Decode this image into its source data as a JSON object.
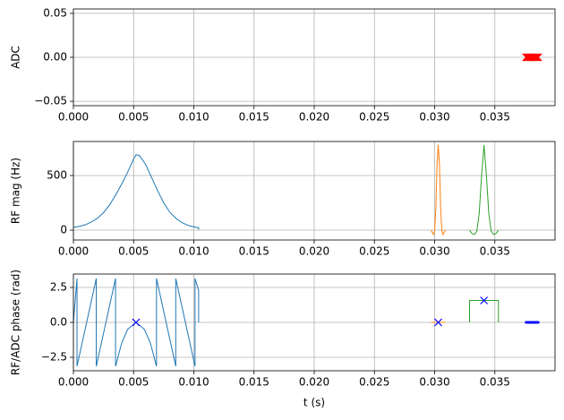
{
  "chart_data": [
    {
      "type": "scatter",
      "ylabel": "ADC",
      "xlim": [
        0,
        0.04
      ],
      "ylim": [
        -0.055,
        0.055
      ],
      "grid": true,
      "xticks": [
        {
          "value": 0,
          "label": "0.000"
        },
        {
          "value": 0.005,
          "label": "0.005"
        },
        {
          "value": 0.01,
          "label": "0.010"
        },
        {
          "value": 0.015,
          "label": "0.015"
        },
        {
          "value": 0.02,
          "label": "0.020"
        },
        {
          "value": 0.025,
          "label": "0.025"
        },
        {
          "value": 0.03,
          "label": "0.030"
        },
        {
          "value": 0.035,
          "label": "0.035"
        }
      ],
      "yticks": [
        {
          "value": -0.05,
          "label": "−0.05"
        },
        {
          "value": 0,
          "label": "0.00"
        },
        {
          "value": 0.05,
          "label": "0.05"
        }
      ],
      "series": [
        {
          "color": "#ff0000",
          "mode": "markers",
          "marker": "x",
          "x": [
            0.0376,
            0.0377,
            0.0378,
            0.0379,
            0.038,
            0.0381,
            0.0382,
            0.0383,
            0.0384,
            0.0385,
            0.0386
          ],
          "values": [
            0,
            0,
            0,
            0,
            0,
            0,
            0,
            0,
            0,
            0,
            0
          ]
        }
      ]
    },
    {
      "type": "line",
      "ylabel": "RF mag (Hz)",
      "xlim": [
        0,
        0.04
      ],
      "ylim": [
        -90,
        811
      ],
      "grid": true,
      "xticks": [
        {
          "value": 0,
          "label": "0.000"
        },
        {
          "value": 0.005,
          "label": "0.005"
        },
        {
          "value": 0.01,
          "label": "0.010"
        },
        {
          "value": 0.015,
          "label": "0.015"
        },
        {
          "value": 0.02,
          "label": "0.020"
        },
        {
          "value": 0.025,
          "label": "0.025"
        },
        {
          "value": 0.03,
          "label": "0.030"
        },
        {
          "value": 0.035,
          "label": "0.035"
        }
      ],
      "yticks": [
        0,
        500
      ],
      "series": [
        {
          "color": "#1f77b4",
          "mode": "line",
          "x": [
            0,
            0.0005,
            0.001,
            0.0015,
            0.002,
            0.0025,
            0.003,
            0.0035,
            0.004,
            0.0045,
            0.005,
            0.0052,
            0.0055,
            0.006,
            0.0065,
            0.007,
            0.0075,
            0.008,
            0.0085,
            0.009,
            0.0095,
            0.01,
            0.0104,
            0.0104
          ],
          "values": [
            25,
            35,
            50,
            75,
            110,
            160,
            230,
            320,
            420,
            530,
            650,
            690,
            680,
            600,
            480,
            360,
            250,
            165,
            110,
            70,
            45,
            30,
            22,
            5
          ]
        },
        {
          "color": "#ff7f0e",
          "mode": "line",
          "x": [
            0.0297,
            0.0299,
            0.03,
            0.0301,
            0.0302,
            0.0303,
            0.0304,
            0.0305,
            0.0306,
            0.0307,
            0.0309
          ],
          "values": [
            0,
            -40,
            -10,
            200,
            600,
            780,
            600,
            200,
            -10,
            -40,
            0
          ]
        },
        {
          "color": "#2ca02c",
          "mode": "line",
          "x": [
            0.0329,
            0.0331,
            0.0333,
            0.0335,
            0.0337,
            0.0339,
            0.0341,
            0.0343,
            0.0345,
            0.0347,
            0.0349,
            0.0351,
            0.0353
          ],
          "values": [
            0,
            -30,
            -40,
            -10,
            150,
            500,
            780,
            500,
            150,
            -10,
            -40,
            -30,
            0
          ]
        }
      ]
    },
    {
      "type": "line",
      "ylabel": "RF/ADC phase (rad)",
      "xlabel": "t (s)",
      "xlim": [
        0,
        0.04
      ],
      "ylim": [
        -3.46,
        3.46
      ],
      "grid": true,
      "xticks": [
        {
          "value": 0,
          "label": "0.000"
        },
        {
          "value": 0.005,
          "label": "0.005"
        },
        {
          "value": 0.01,
          "label": "0.010"
        },
        {
          "value": 0.015,
          "label": "0.015"
        },
        {
          "value": 0.02,
          "label": "0.020"
        },
        {
          "value": 0.025,
          "label": "0.025"
        },
        {
          "value": 0.03,
          "label": "0.030"
        },
        {
          "value": 0.035,
          "label": "0.035"
        }
      ],
      "yticks": [
        {
          "value": -2.5,
          "label": "−2.5"
        },
        {
          "value": 0,
          "label": "0.0"
        },
        {
          "value": 2.5,
          "label": "2.5"
        }
      ],
      "series": [
        {
          "color": "#1f77b4",
          "mode": "line",
          "x": [
            0,
            0.0003,
            0.0003,
            0.0019,
            0.0019,
            0.0035,
            0.0035,
            0.004,
            0.0045,
            0.0052,
            0.0059,
            0.0064,
            0.0069,
            0.0069,
            0.0085,
            0.0085,
            0.0101,
            0.0101,
            0.0104,
            0.0104
          ],
          "values": [
            0,
            3.14,
            -3.14,
            3.14,
            -3.14,
            3.14,
            -3.14,
            -1.5,
            -0.5,
            0,
            -0.5,
            -1.5,
            -3.14,
            3.14,
            -3.14,
            3.14,
            -3.14,
            3.14,
            2.3,
            0
          ]
        },
        {
          "color": "#ff7f0e",
          "mode": "line",
          "x": [
            0.0297,
            0.0309
          ],
          "values": [
            0,
            0
          ]
        },
        {
          "color": "#2ca02c",
          "mode": "line",
          "x": [
            0.0329,
            0.0329,
            0.0353,
            0.0353
          ],
          "values": [
            0,
            1.57,
            1.57,
            0
          ]
        },
        {
          "color": "#0000ff",
          "mode": "markers",
          "marker": "x",
          "x": [
            0.0052,
            0.0303,
            0.0341
          ],
          "values": [
            0,
            0,
            1.57
          ]
        },
        {
          "color": "#0000ff",
          "mode": "markers",
          "marker": "dot",
          "x": [
            0.0376,
            0.0377,
            0.0378,
            0.0379,
            0.038,
            0.0381,
            0.0382,
            0.0383,
            0.0384,
            0.0385,
            0.0386
          ],
          "values": [
            0,
            0,
            0,
            0,
            0,
            0,
            0,
            0,
            0,
            0,
            0
          ]
        }
      ]
    }
  ]
}
